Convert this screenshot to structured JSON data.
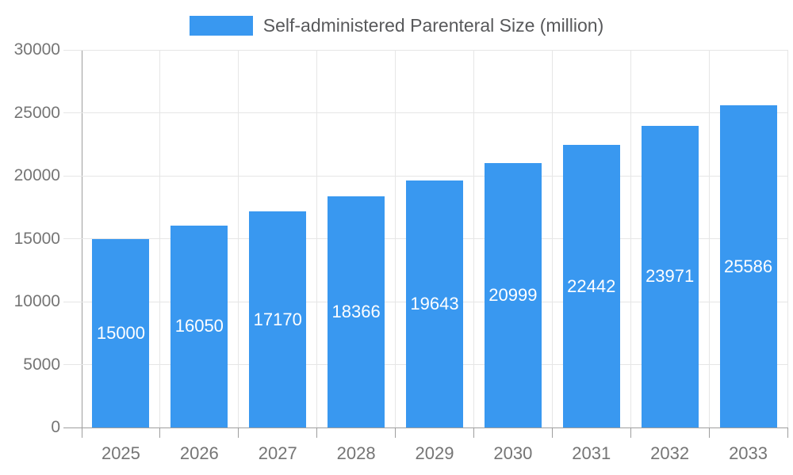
{
  "legend": {
    "label": "Self-administered Parenteral Size (million)",
    "swatch_color": "#3998f0"
  },
  "chart_data": {
    "type": "bar",
    "title": "Self-administered Parenteral Size (million)",
    "categories": [
      "2025",
      "2026",
      "2027",
      "2028",
      "2029",
      "2030",
      "2031",
      "2032",
      "2033"
    ],
    "series": [
      {
        "name": "Self-administered Parenteral Size (million)",
        "values": [
          15000,
          16050,
          17170,
          18366,
          19643,
          20999,
          22442,
          23971,
          25586
        ]
      }
    ],
    "bar_value_labels": [
      "15000",
      "16050",
      "17170",
      "18366",
      "19643",
      "20999",
      "22442",
      "23971",
      "25586"
    ],
    "xlabel": "",
    "ylabel": "",
    "ylim": [
      0,
      30000
    ],
    "yticks": [
      0,
      5000,
      10000,
      15000,
      20000,
      25000,
      30000
    ],
    "grid": "horizontal and vertical gridlines on",
    "legend_position": "top-center"
  },
  "colors": {
    "bar": "#3998f0",
    "bar_label_text": "#ffffff",
    "gridline": "#e6e6e6",
    "axis_line": "#9e9e9e",
    "tick_label_text": "#757575",
    "legend_text": "#58595b",
    "background": "#ffffff"
  }
}
